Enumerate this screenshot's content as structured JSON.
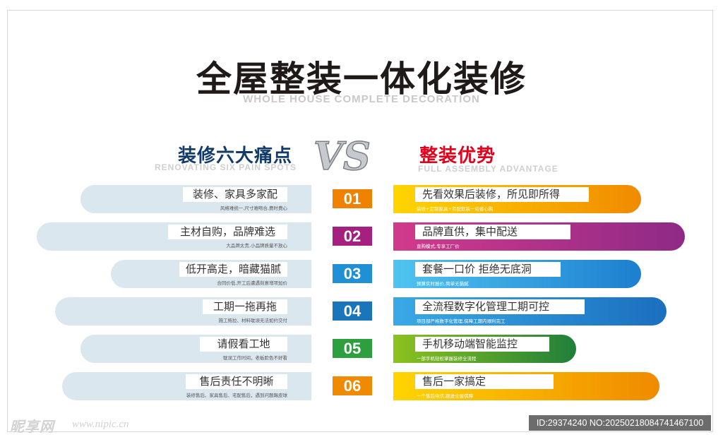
{
  "title": "全屋整装一体化装修",
  "subtitle": "WHOLE HOUSE COMPLETE DECORATION",
  "left_heading": "装修六大痛点",
  "left_subheading": "RENOVATING SIX PAIN SPOTS",
  "vs": "VS",
  "right_heading": "整装优势",
  "right_subheading": "FULL ASSEMBLY ADVANTAGE",
  "rows": [
    {
      "number": "01",
      "number_color": "#ef8200",
      "pain": "装修、家具多家配",
      "pain_desc": "风格难统一,尺寸难吻合,费时费心",
      "advantage": "先看效果后装修，所见即所得",
      "advantage_desc": "装修+定制家具+宅配软装一站省心购",
      "bar_colors": [
        "#ffd500",
        "#f08a00"
      ]
    },
    {
      "number": "02",
      "number_color": "#a6217f",
      "pain": "主材自购，品牌难选",
      "pain_desc": "大品牌太贵,小品牌质量不放心",
      "advantage": "品牌直供，集中配送",
      "advantage_desc": "直购模式,专享工厂价",
      "bar_colors": [
        "#d23a8c",
        "#8e2a86"
      ]
    },
    {
      "number": "03",
      "number_color": "#1f8fd6",
      "pain": "低开高走，暗藏猫腻",
      "pain_desc": "合同价低,开工后遭遇刻意增项加价",
      "advantage": "套餐一口价  拒绝无底洞",
      "advantage_desc": "预算实时报价,简单无猫腻",
      "bar_colors": [
        "#4fc4f0",
        "#1d7fcf"
      ]
    },
    {
      "number": "04",
      "number_color": "#1b75bb",
      "pain": "工期一拖再拖",
      "pain_desc": "施工拖拉、材料耽误无法如约交付",
      "advantage": "全流程数字化管理工期可控",
      "advantage_desc": "项目部严格数字化管理,保障工期内顺利完工",
      "bar_colors": [
        "#3aa9e6",
        "#1b6fbf"
      ]
    },
    {
      "number": "05",
      "number_color": "#2e9f3e",
      "pain": "请假看工地",
      "pain_desc": "耽误工作时间，老板脸色不好看",
      "advantage": "手机移动端智能监控",
      "advantage_desc": "一部手机轻松掌握装修全流程",
      "bar_colors": [
        "#8cc21f",
        "#1f7f3a"
      ]
    },
    {
      "number": "06",
      "number_color": "#f08a00",
      "pain": "售后责任不明晰",
      "pain_desc": "装修售后、家具售后、宅配售后，遇到问题踢皮球",
      "advantage": "售后一家搞定",
      "advantage_desc": "一个售后电话,跟进全屋保障",
      "bar_colors": [
        "#ffd500",
        "#f08a00"
      ]
    }
  ],
  "watermark_logo": "昵享网",
  "watermark_url": "www.nipic.cn",
  "image_id": "ID:29374240 NO:20250218084741467100"
}
